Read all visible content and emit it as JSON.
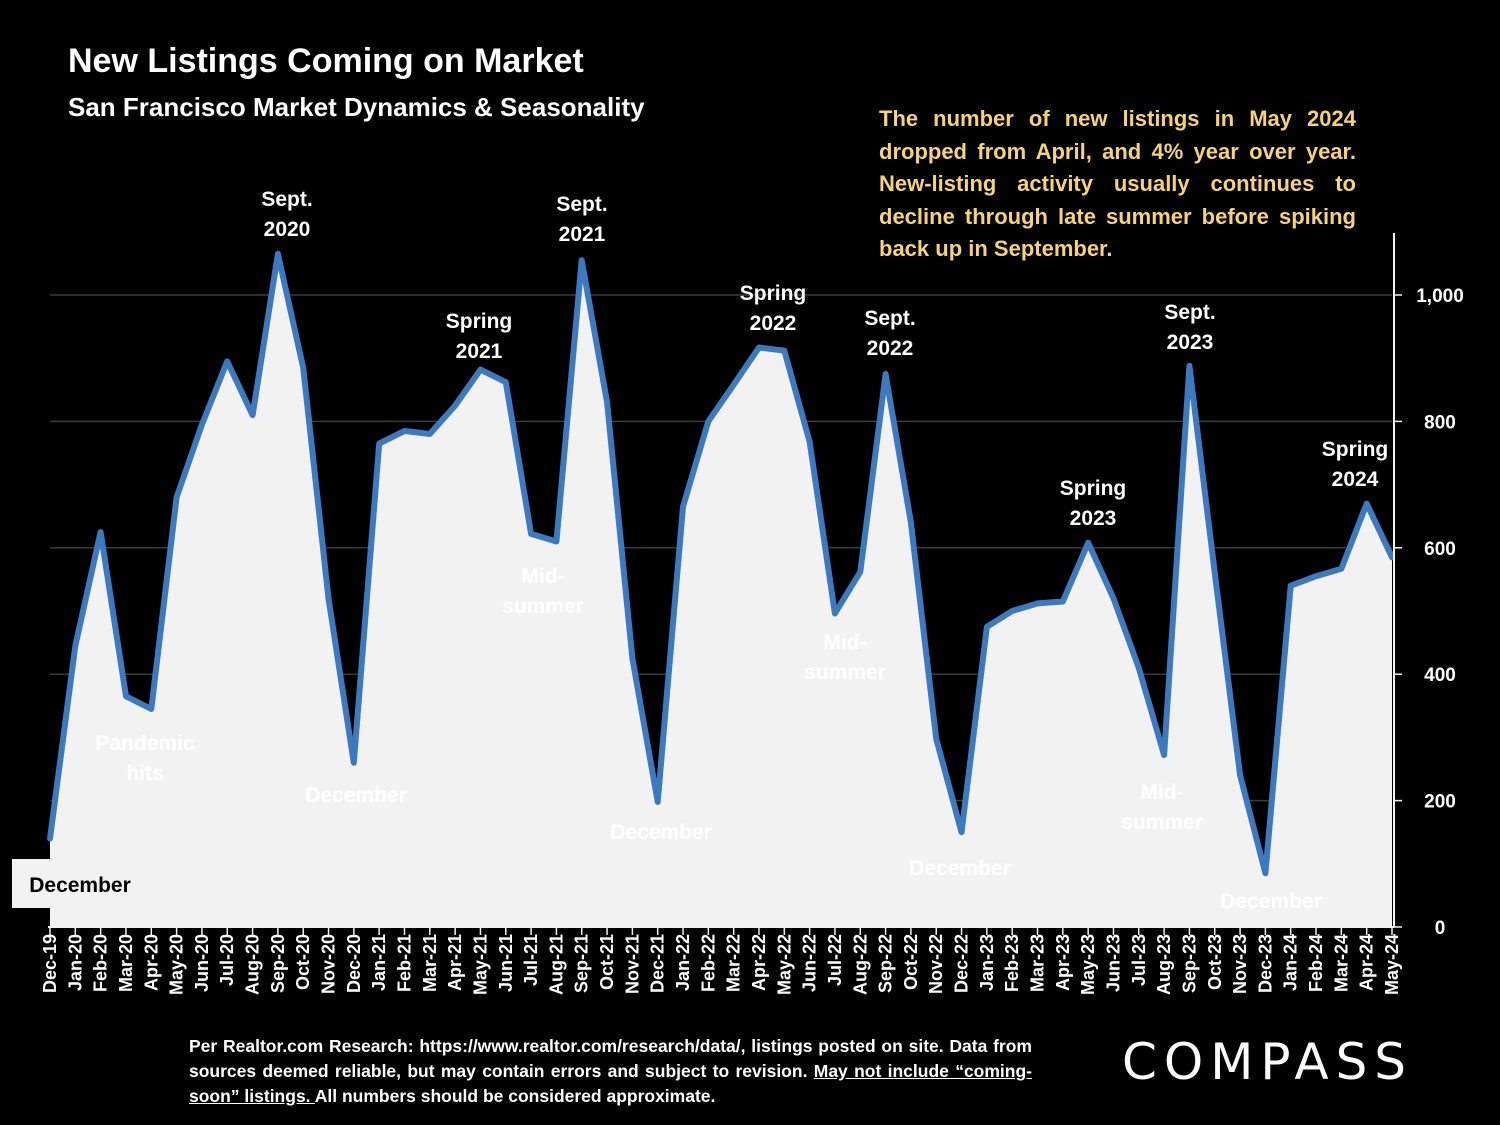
{
  "title": "New Listings Coming on Market",
  "subtitle": "San Francisco Market Dynamics & Seasonality",
  "commentary": "The number of new listings in May 2024 dropped from April, and 4% year over year. New-listing activity usually continues to decline through late summer before spiking back up in September.",
  "source": {
    "part1": "Per Realtor.com Research:   https://www.realtor.com/research/data/, listings posted on site. Data from sources deemed reliable, but may contain errors and subject to revision. ",
    "underlined": "May not include “coming-soon” listings. ",
    "part2": "All numbers should be considered approximate."
  },
  "logo": "COMPASS",
  "colors": {
    "line": "#3d79bf",
    "fill": "#f2f2f2",
    "grid": "#3a3a3a",
    "commentary": "#f6d27a",
    "background": "#000000"
  },
  "chart_data": {
    "type": "area",
    "title": "New Listings Coming on Market",
    "categories": [
      "Dec-19",
      "Jan-20",
      "Feb-20",
      "Mar-20",
      "Apr-20",
      "May-20",
      "Jun-20",
      "Jul-20",
      "Aug-20",
      "Sep-20",
      "Oct-20",
      "Nov-20",
      "Dec-20",
      "Jan-21",
      "Feb-21",
      "Mar-21",
      "Apr-21",
      "May-21",
      "Jun-21",
      "Jul-21",
      "Aug-21",
      "Sep-21",
      "Oct-21",
      "Nov-21",
      "Dec-21",
      "Jan-22",
      "Feb-22",
      "Mar-22",
      "Apr-22",
      "May-22",
      "Jun-22",
      "Jul-22",
      "Aug-22",
      "Sep-22",
      "Oct-22",
      "Nov-22",
      "Dec-22",
      "Jan-23",
      "Feb-23",
      "Mar-23",
      "Apr-23",
      "May-23",
      "Jun-23",
      "Jul-23",
      "Aug-23",
      "Sep-23",
      "Oct-23",
      "Nov-23",
      "Dec-23",
      "Jan-24",
      "Feb-24",
      "Mar-24",
      "Apr-24",
      "May-24"
    ],
    "values": [
      140,
      445,
      625,
      365,
      345,
      680,
      795,
      895,
      810,
      1065,
      885,
      520,
      260,
      765,
      785,
      780,
      825,
      882,
      862,
      622,
      610,
      1055,
      830,
      425,
      198,
      665,
      800,
      858,
      917,
      912,
      768,
      496,
      562,
      875,
      640,
      298,
      150,
      475,
      500,
      512,
      515,
      608,
      520,
      410,
      272,
      888,
      560,
      240,
      85,
      540,
      555,
      567,
      670,
      585
    ],
    "ylim": [
      0,
      1100
    ],
    "yticks": [
      0,
      200,
      400,
      600,
      800,
      1000
    ],
    "ytick_labels": [
      "0",
      "200",
      "400",
      "600",
      "800",
      "1,000"
    ],
    "axis_side": "right",
    "grid": true,
    "annotations": [
      {
        "lines": [
          "December"
        ],
        "style": "boxed"
      },
      {
        "lines": [
          "Pandemic",
          "hits"
        ]
      },
      {
        "lines": [
          "Sept.",
          "2020"
        ]
      },
      {
        "lines": [
          "December"
        ]
      },
      {
        "lines": [
          "Spring",
          "2021"
        ]
      },
      {
        "lines": [
          "Sept.",
          "2021"
        ]
      },
      {
        "lines": [
          "Mid-",
          "summer"
        ]
      },
      {
        "lines": [
          "December"
        ]
      },
      {
        "lines": [
          "Spring",
          "2022"
        ]
      },
      {
        "lines": [
          "Sept.",
          "2022"
        ]
      },
      {
        "lines": [
          "Mid-",
          "summer"
        ]
      },
      {
        "lines": [
          "December"
        ]
      },
      {
        "lines": [
          "Spring",
          "2023"
        ]
      },
      {
        "lines": [
          "Sept.",
          "2023"
        ]
      },
      {
        "lines": [
          "Mid-",
          "summer"
        ]
      },
      {
        "lines": [
          "December"
        ]
      },
      {
        "lines": [
          "Spring",
          "2024"
        ]
      }
    ]
  }
}
